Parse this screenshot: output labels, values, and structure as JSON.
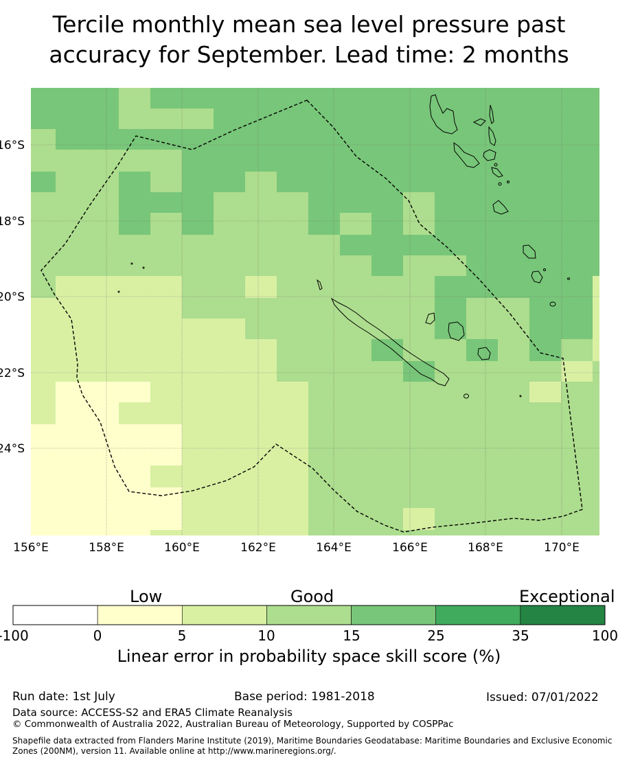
{
  "title": {
    "line1": "Tercile monthly mean sea level pressure past",
    "line2": "accuracy for September. Lead time: 2 months"
  },
  "map": {
    "lon_labels": [
      "156°E",
      "158°E",
      "160°E",
      "162°E",
      "164°E",
      "166°E",
      "168°E",
      "170°E"
    ],
    "lat_labels": [
      "16°S",
      "18°S",
      "20°S",
      "22°S",
      "24°S"
    ],
    "region": "New Caledonia EEZ"
  },
  "colorbar": {
    "category_labels": [
      "Low",
      "Good",
      "Exceptional"
    ],
    "ticks": [
      "-100",
      "0",
      "5",
      "10",
      "15",
      "25",
      "35",
      "100"
    ],
    "colors": [
      "#ffffff",
      "#ffffcc",
      "#d9f0a3",
      "#addd8e",
      "#78c679",
      "#41ab5d",
      "#238443"
    ],
    "axis_title": "Linear error in probability space skill score (%)"
  },
  "footer": {
    "run_date": "Run date: 1st July",
    "base_period": "Base period: 1981-2018",
    "issued": "Issued: 07/01/2022",
    "data_source": "Data source: ACCESS-S2 and ERA5 Climate Reanalysis",
    "copyright": "© Commonwealth of Australia 2022, Australian Bureau of Meteorology, Supported by COSPPac",
    "shapefile": "Shapefile data extracted from Flanders Marine Institute (2019), Maritime Boundaries Geodatabase: Maritime Boundaries and Exclusive Economic Zones (200NM), version 11. Available online at http://www.marineregions.org/."
  }
}
